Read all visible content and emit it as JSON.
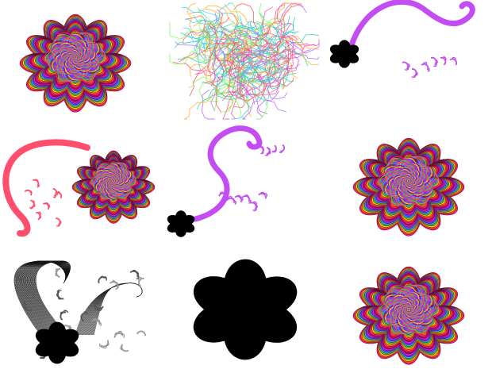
{
  "gallery": {
    "tiles": [
      {
        "kind": "flower-spiral"
      },
      {
        "kind": "tangle"
      },
      {
        "kind": "curl-flower",
        "stroke": "#c34cf2",
        "flip": false
      },
      {
        "kind": "curl-flower-spiral",
        "stroke": "#ff4f6d"
      },
      {
        "kind": "curl-flower",
        "stroke": "#c34cf2",
        "flip": true
      },
      {
        "kind": "flower-spiral"
      },
      {
        "kind": "sketch"
      },
      {
        "kind": "flower-solid"
      },
      {
        "kind": "flower-spiral"
      }
    ],
    "palette": {
      "ring_colors": [
        "#ff1f8a",
        "#ff6a00",
        "#ffd400",
        "#3ad13a",
        "#2ba8ff",
        "#6a3cff",
        "#d82bd8",
        "#b00060"
      ],
      "tangle_colors": [
        "#ff4fa3",
        "#3ad1ff",
        "#7cff5a",
        "#ffb02b",
        "#b36bff",
        "#ff5a5a",
        "#2bd8b0"
      ],
      "fill": "#000000"
    }
  }
}
